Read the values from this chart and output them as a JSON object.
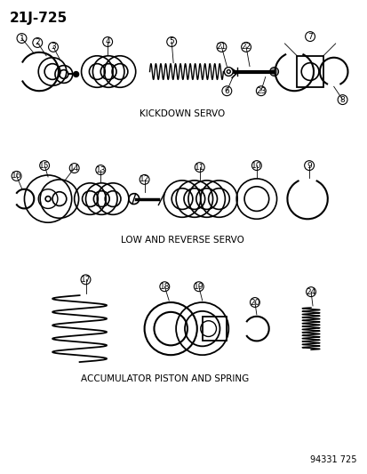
{
  "title": "21J-725",
  "background_color": "#ffffff",
  "line_color": "#000000",
  "section1_label": "KICKDOWN SERVO",
  "section2_label": "LOW AND REVERSE SERVO",
  "section3_label": "ACCUMULATOR PISTON AND SPRING",
  "footer": "94331 725",
  "part_numbers": [
    1,
    2,
    3,
    4,
    5,
    6,
    7,
    8,
    9,
    10,
    11,
    12,
    13,
    14,
    15,
    16,
    17,
    18,
    19,
    20,
    21,
    22,
    23,
    24
  ]
}
